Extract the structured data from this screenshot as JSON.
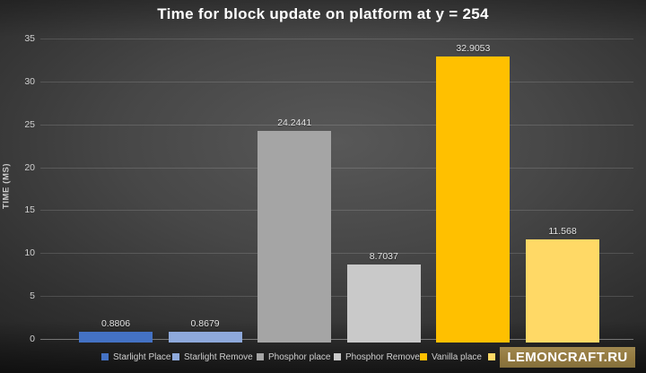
{
  "title": "Time for block update on platform at y = 254",
  "watermark": {
    "text": "LEMONCRAFT.RU"
  },
  "colors": {
    "background_center": "#585858",
    "background_edge": "#1d1d1d",
    "title_text": "#ffffff",
    "tick_text": "#cfcfcf",
    "gridline": "rgba(255,255,255,0.14)",
    "watermark_bg": "#93793f",
    "starlight_place": "#4472c4",
    "starlight_remove": "#8ea9db",
    "phosphor_place": "#a5a5a5",
    "phosphor_remove": "#c9c9c9",
    "vanilla_place": "#ffc000",
    "sixth_bar": "#ffd966"
  },
  "chart_data": {
    "type": "bar",
    "title": "Time for block update on platform at y = 254",
    "xlabel": "",
    "ylabel": "TIME (MS)",
    "ylim": [
      0,
      35
    ],
    "yticks": [
      0,
      5,
      10,
      15,
      20,
      25,
      30,
      35
    ],
    "grid": true,
    "legend_position": "bottom",
    "categories": [
      "Starlight Place",
      "Starlight Remove",
      "Phosphor place",
      "Phosphor Remove",
      "Vanilla place",
      ""
    ],
    "values": [
      0.8806,
      0.8679,
      24.2441,
      8.7037,
      32.9053,
      11.568
    ],
    "value_labels": [
      "0.8806",
      "0.8679",
      "24.2441",
      "8.7037",
      "32.9053",
      "11.568"
    ],
    "bar_colors": [
      "#4472c4",
      "#8ea9db",
      "#a5a5a5",
      "#c9c9c9",
      "#ffc000",
      "#ffd966"
    ],
    "legend": [
      {
        "label": "Starlight Place",
        "color": "#4472c4"
      },
      {
        "label": "Starlight Remove",
        "color": "#8ea9db"
      },
      {
        "label": "Phosphor place",
        "color": "#a5a5a5"
      },
      {
        "label": "Phosphor Remove",
        "color": "#c9c9c9"
      },
      {
        "label": "Vanilla place",
        "color": "#ffc000"
      },
      {
        "label": "",
        "color": "#ffd966"
      }
    ]
  }
}
